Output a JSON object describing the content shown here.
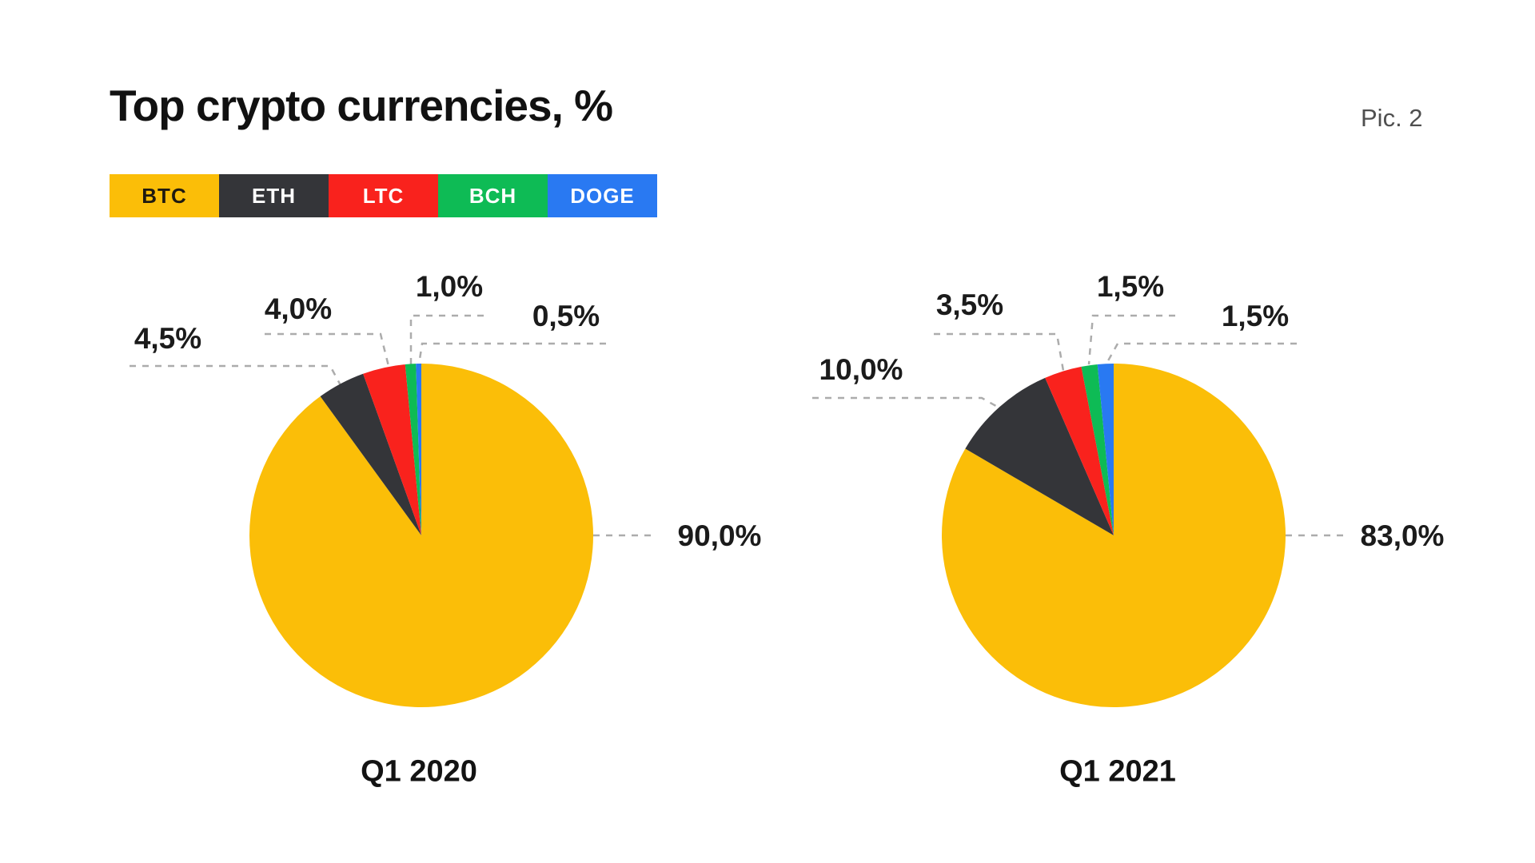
{
  "page": {
    "title": "Top crypto currencies, %",
    "figure_caption": "Pic. 2",
    "background": "#FFFFFF"
  },
  "colors": {
    "BTC": "#FBBE08",
    "ETH": "#343539",
    "LTC": "#F9221D",
    "BCH": "#0EBB55",
    "DOGE": "#2979F2",
    "leader_line": "#ACACAC",
    "label_text": "#1B1B1B",
    "title_text": "#111111",
    "caption_text": "#4F4F4F"
  },
  "legend": {
    "position": "top-left",
    "items": [
      {
        "label": "BTC",
        "color": "#FBBE08",
        "text_color": "#1F1A10"
      },
      {
        "label": "ETH",
        "color": "#343539",
        "text_color": "#FFFFFF"
      },
      {
        "label": "LTC",
        "color": "#F9221D",
        "text_color": "#FFFFFF"
      },
      {
        "label": "BCH",
        "color": "#0EBB55",
        "text_color": "#FFFFFF"
      },
      {
        "label": "DOGE",
        "color": "#2979F2",
        "text_color": "#FFFFFF"
      }
    ]
  },
  "chart_data": [
    {
      "type": "pie",
      "title": "Q1 2020",
      "categories": [
        "BTC",
        "ETH",
        "LTC",
        "BCH",
        "DOGE"
      ],
      "values": [
        90.0,
        4.5,
        4.0,
        1.0,
        0.5
      ],
      "labels": [
        "90,0%",
        "4,5%",
        "4,0%",
        "1,0%",
        "0,5%"
      ],
      "colors": [
        "#FBBE08",
        "#343539",
        "#F9221D",
        "#0EBB55",
        "#2979F2"
      ],
      "start_angle": "12 o'clock",
      "direction": "clockwise",
      "grid": false,
      "annotation_style": "dashed leader lines"
    },
    {
      "type": "pie",
      "title": "Q1 2021",
      "categories": [
        "BTC",
        "ETH",
        "LTC",
        "BCH",
        "DOGE"
      ],
      "values": [
        83.0,
        10.0,
        3.5,
        1.5,
        1.5
      ],
      "labels": [
        "83,0%",
        "10,0%",
        "3,5%",
        "1,5%",
        "1,5%"
      ],
      "colors": [
        "#FBBE08",
        "#343539",
        "#F9221D",
        "#0EBB55",
        "#2979F2"
      ],
      "start_angle": "12 o'clock",
      "direction": "clockwise",
      "grid": false,
      "annotation_style": "dashed leader lines"
    }
  ]
}
